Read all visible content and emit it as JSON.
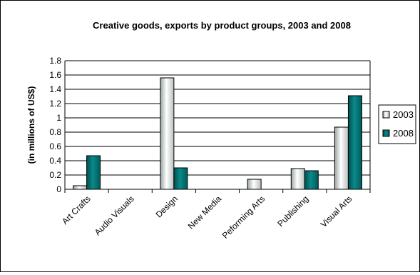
{
  "chart_data": {
    "type": "bar",
    "title": "Creative goods, exports by product groups, 2003 and 2008",
    "ylabel": "(in millions of US$)",
    "xlabel": "",
    "categories": [
      "Art Crafts",
      "Audio Visuals",
      "Design",
      "New Media",
      "Peforming Arts",
      "Publishing",
      "Visual Arts"
    ],
    "series": [
      {
        "name": "2003",
        "values": [
          0.05,
          0,
          1.56,
          0,
          0.14,
          0.29,
          0.87
        ]
      },
      {
        "name": "2008",
        "values": [
          0.47,
          0,
          0.3,
          0,
          0,
          0.26,
          1.31
        ]
      }
    ],
    "ylim": [
      0,
      1.8
    ],
    "yticks": [
      "0",
      "0.2",
      "0.4",
      "0.6",
      "0.8",
      "1",
      "1.2",
      "1.4",
      "1.6",
      "1.8"
    ],
    "grid": true,
    "legend_position": "right",
    "colors": {
      "2003": "#e0e4e4",
      "2008": "#007b7b"
    }
  }
}
